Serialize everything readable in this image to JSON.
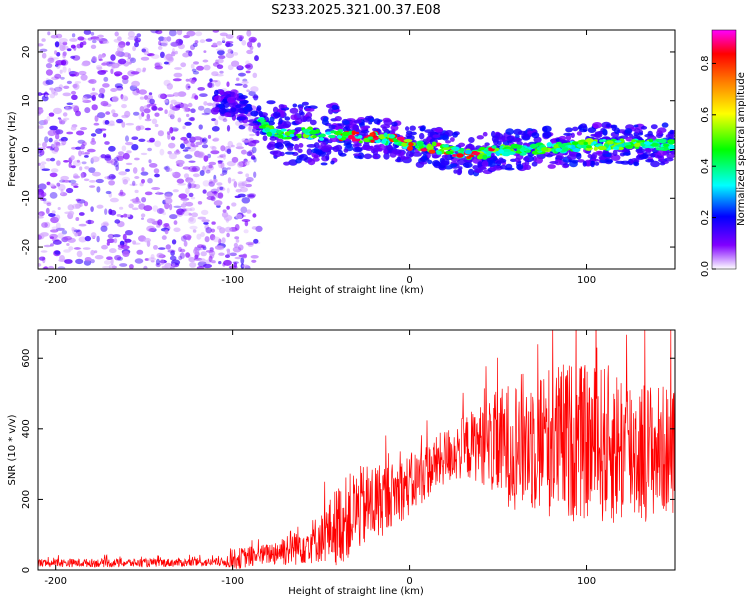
{
  "title": "S233.2025.321.00.37.E08",
  "chart_data": [
    {
      "type": "heatmap",
      "name": "spectrogram",
      "xlabel": "Height of straight line (km)",
      "ylabel": "Frequency (Hz)",
      "xlim": [
        -210,
        150
      ],
      "ylim": [
        -24.5,
        24.5
      ],
      "xticks": [
        -200,
        -100,
        0,
        100
      ],
      "yticks": [
        -20,
        -10,
        0,
        10,
        20
      ],
      "colorbar": {
        "label": "Normalized spectral amplitude",
        "ticks": [
          0.0,
          0.2,
          0.4,
          0.6,
          0.8
        ],
        "range": [
          0.0,
          0.93
        ],
        "colors": [
          "#ffffff",
          "#8000ff",
          "#0000ff",
          "#00ffff",
          "#00ff00",
          "#ffff00",
          "#ff8000",
          "#ff0000",
          "#ff00ff"
        ]
      },
      "signal_track": {
        "heights_km": [
          -110,
          -100,
          -90,
          -80,
          -70,
          -60,
          -50,
          -40,
          -30,
          -20,
          -10,
          0,
          10,
          20,
          30,
          40,
          50,
          60,
          70,
          80,
          90,
          100,
          110,
          120,
          130,
          140,
          150
        ],
        "frequency_hz": [
          10,
          9,
          8,
          4,
          3,
          3.5,
          3,
          3,
          2.5,
          2.5,
          2,
          1,
          0.5,
          0,
          -1,
          -1,
          0,
          0,
          0,
          0.5,
          0.5,
          1,
          1,
          1,
          1,
          1,
          1
        ]
      },
      "noise_region_km": [
        -210,
        -85
      ]
    },
    {
      "type": "line",
      "name": "snr",
      "xlabel": "Height of straight line (km)",
      "ylabel": "SNR (10 * v/v)",
      "xlim": [
        -210,
        150
      ],
      "ylim": [
        0,
        680
      ],
      "xticks": [
        -200,
        -100,
        0,
        100
      ],
      "yticks": [
        0,
        200,
        400,
        600
      ],
      "color": "#ff0000",
      "envelope": {
        "heights_km": [
          -210,
          -150,
          -105,
          -100,
          -90,
          -80,
          -70,
          -60,
          -50,
          -40,
          -30,
          -20,
          -10,
          0,
          10,
          20,
          30,
          40,
          50,
          60,
          70,
          80,
          90,
          100,
          110,
          120,
          130,
          140,
          150
        ],
        "mean": [
          20,
          20,
          22,
          30,
          38,
          45,
          60,
          75,
          90,
          130,
          170,
          190,
          215,
          240,
          280,
          320,
          345,
          360,
          350,
          360,
          370,
          365,
          365,
          360,
          355,
          350,
          340,
          340,
          340
        ],
        "spread": [
          12,
          12,
          12,
          30,
          30,
          30,
          50,
          60,
          70,
          120,
          120,
          120,
          90,
          90,
          80,
          80,
          90,
          110,
          160,
          190,
          210,
          220,
          230,
          220,
          230,
          230,
          210,
          190,
          180
        ]
      }
    }
  ]
}
